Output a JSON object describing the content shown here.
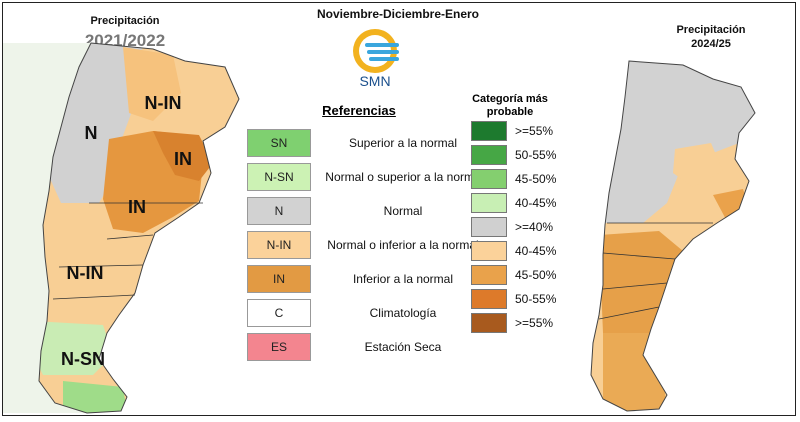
{
  "header": {
    "main_title": "Noviembre-Diciembre-Enero",
    "left_title": "Precipitación",
    "left_year": "2021/2022",
    "right_title_line1": "Precipitación",
    "right_title_line2": "2024/25",
    "logo_text": "SMN"
  },
  "left_map_labels": {
    "n_in_top": "N-IN",
    "n_west": "N",
    "in_east": "IN",
    "in_center": "IN",
    "n_in_south": "N-IN",
    "n_sn_south": "N-SN"
  },
  "references": {
    "title": "Referencias",
    "items": [
      {
        "code": "SN",
        "label": "Superior a la normal",
        "color": "#7fd070"
      },
      {
        "code": "N-SN",
        "label": "Normal o superior a la norma",
        "color": "#ccf2b4"
      },
      {
        "code": "N",
        "label": "Normal",
        "color": "#d2d2d2"
      },
      {
        "code": "N-IN",
        "label": "Normal o inferior a la normal",
        "color": "#fbd29a"
      },
      {
        "code": "IN",
        "label": "Inferior a la normal",
        "color": "#e29a43"
      },
      {
        "code": "C",
        "label": "Climatología",
        "color": "#ffffff"
      },
      {
        "code": "ES",
        "label": "Estación Seca",
        "color": "#f3858f"
      }
    ]
  },
  "category_legend": {
    "title_line1": "Categoría más",
    "title_line2": "probable",
    "items": [
      {
        "label": ">=55%",
        "color": "#1d7a2e"
      },
      {
        "label": "50-55%",
        "color": "#46a745"
      },
      {
        "label": "45-50%",
        "color": "#84cf6f"
      },
      {
        "label": "40-45%",
        "color": "#c8efb4"
      },
      {
        "label": ">=40%",
        "color": "#d0d0d0"
      },
      {
        "label": "40-45%",
        "color": "#fbd29a"
      },
      {
        "label": "45-50%",
        "color": "#e9a24b"
      },
      {
        "label": "50-55%",
        "color": "#dd7a2a"
      },
      {
        "label": ">=55%",
        "color": "#a85a1e"
      }
    ]
  }
}
